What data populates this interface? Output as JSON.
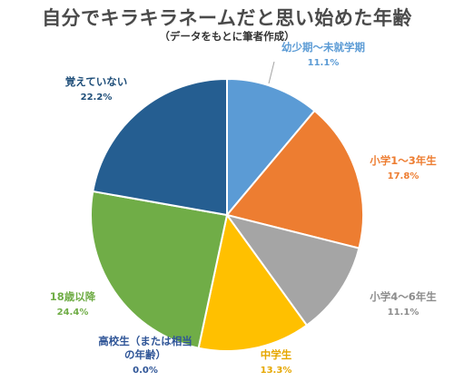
{
  "colors": {
    "accent_blue": "#5b9bd5",
    "accent_orange": "#ed7d31",
    "accent_gray": "#a5a5a5",
    "accent_gold": "#ffc000",
    "accent_green": "#70ad47",
    "accent_navy": "#255e91"
  },
  "chart_data": {
    "type": "pie",
    "title": "自分でキラキラネームだと思い始めた年齢",
    "subtitle": "（データをもとに筆者作成）",
    "start_angle_deg": 0,
    "direction": "clockwise",
    "slices": [
      {
        "name": "幼少期～未就学期",
        "value": 11.1,
        "percent_label": "11.1%",
        "color": "#5b9bd5",
        "label_color": "#5b9bd5"
      },
      {
        "name": "小学1～3年生",
        "value": 17.8,
        "percent_label": "17.8%",
        "color": "#ed7d31",
        "label_color": "#ed7d31"
      },
      {
        "name": "小学4～6年生",
        "value": 11.1,
        "percent_label": "11.1%",
        "color": "#a5a5a5",
        "label_color": "#8c8c8c"
      },
      {
        "name": "中学生",
        "value": 13.3,
        "percent_label": "13.3%",
        "color": "#ffc000",
        "label_color": "#e6a700"
      },
      {
        "name": "高校生（または相当の年齢）",
        "value": 0.0,
        "percent_label": "0.0%",
        "color": "#4472c4",
        "label_color": "#2f5597"
      },
      {
        "name": "18歳以降",
        "value": 24.4,
        "percent_label": "24.4%",
        "color": "#70ad47",
        "label_color": "#70ad47"
      },
      {
        "name": "覚えていない",
        "value": 22.2,
        "percent_label": "22.2%",
        "color": "#255e91",
        "label_color": "#1f4e79"
      }
    ]
  }
}
